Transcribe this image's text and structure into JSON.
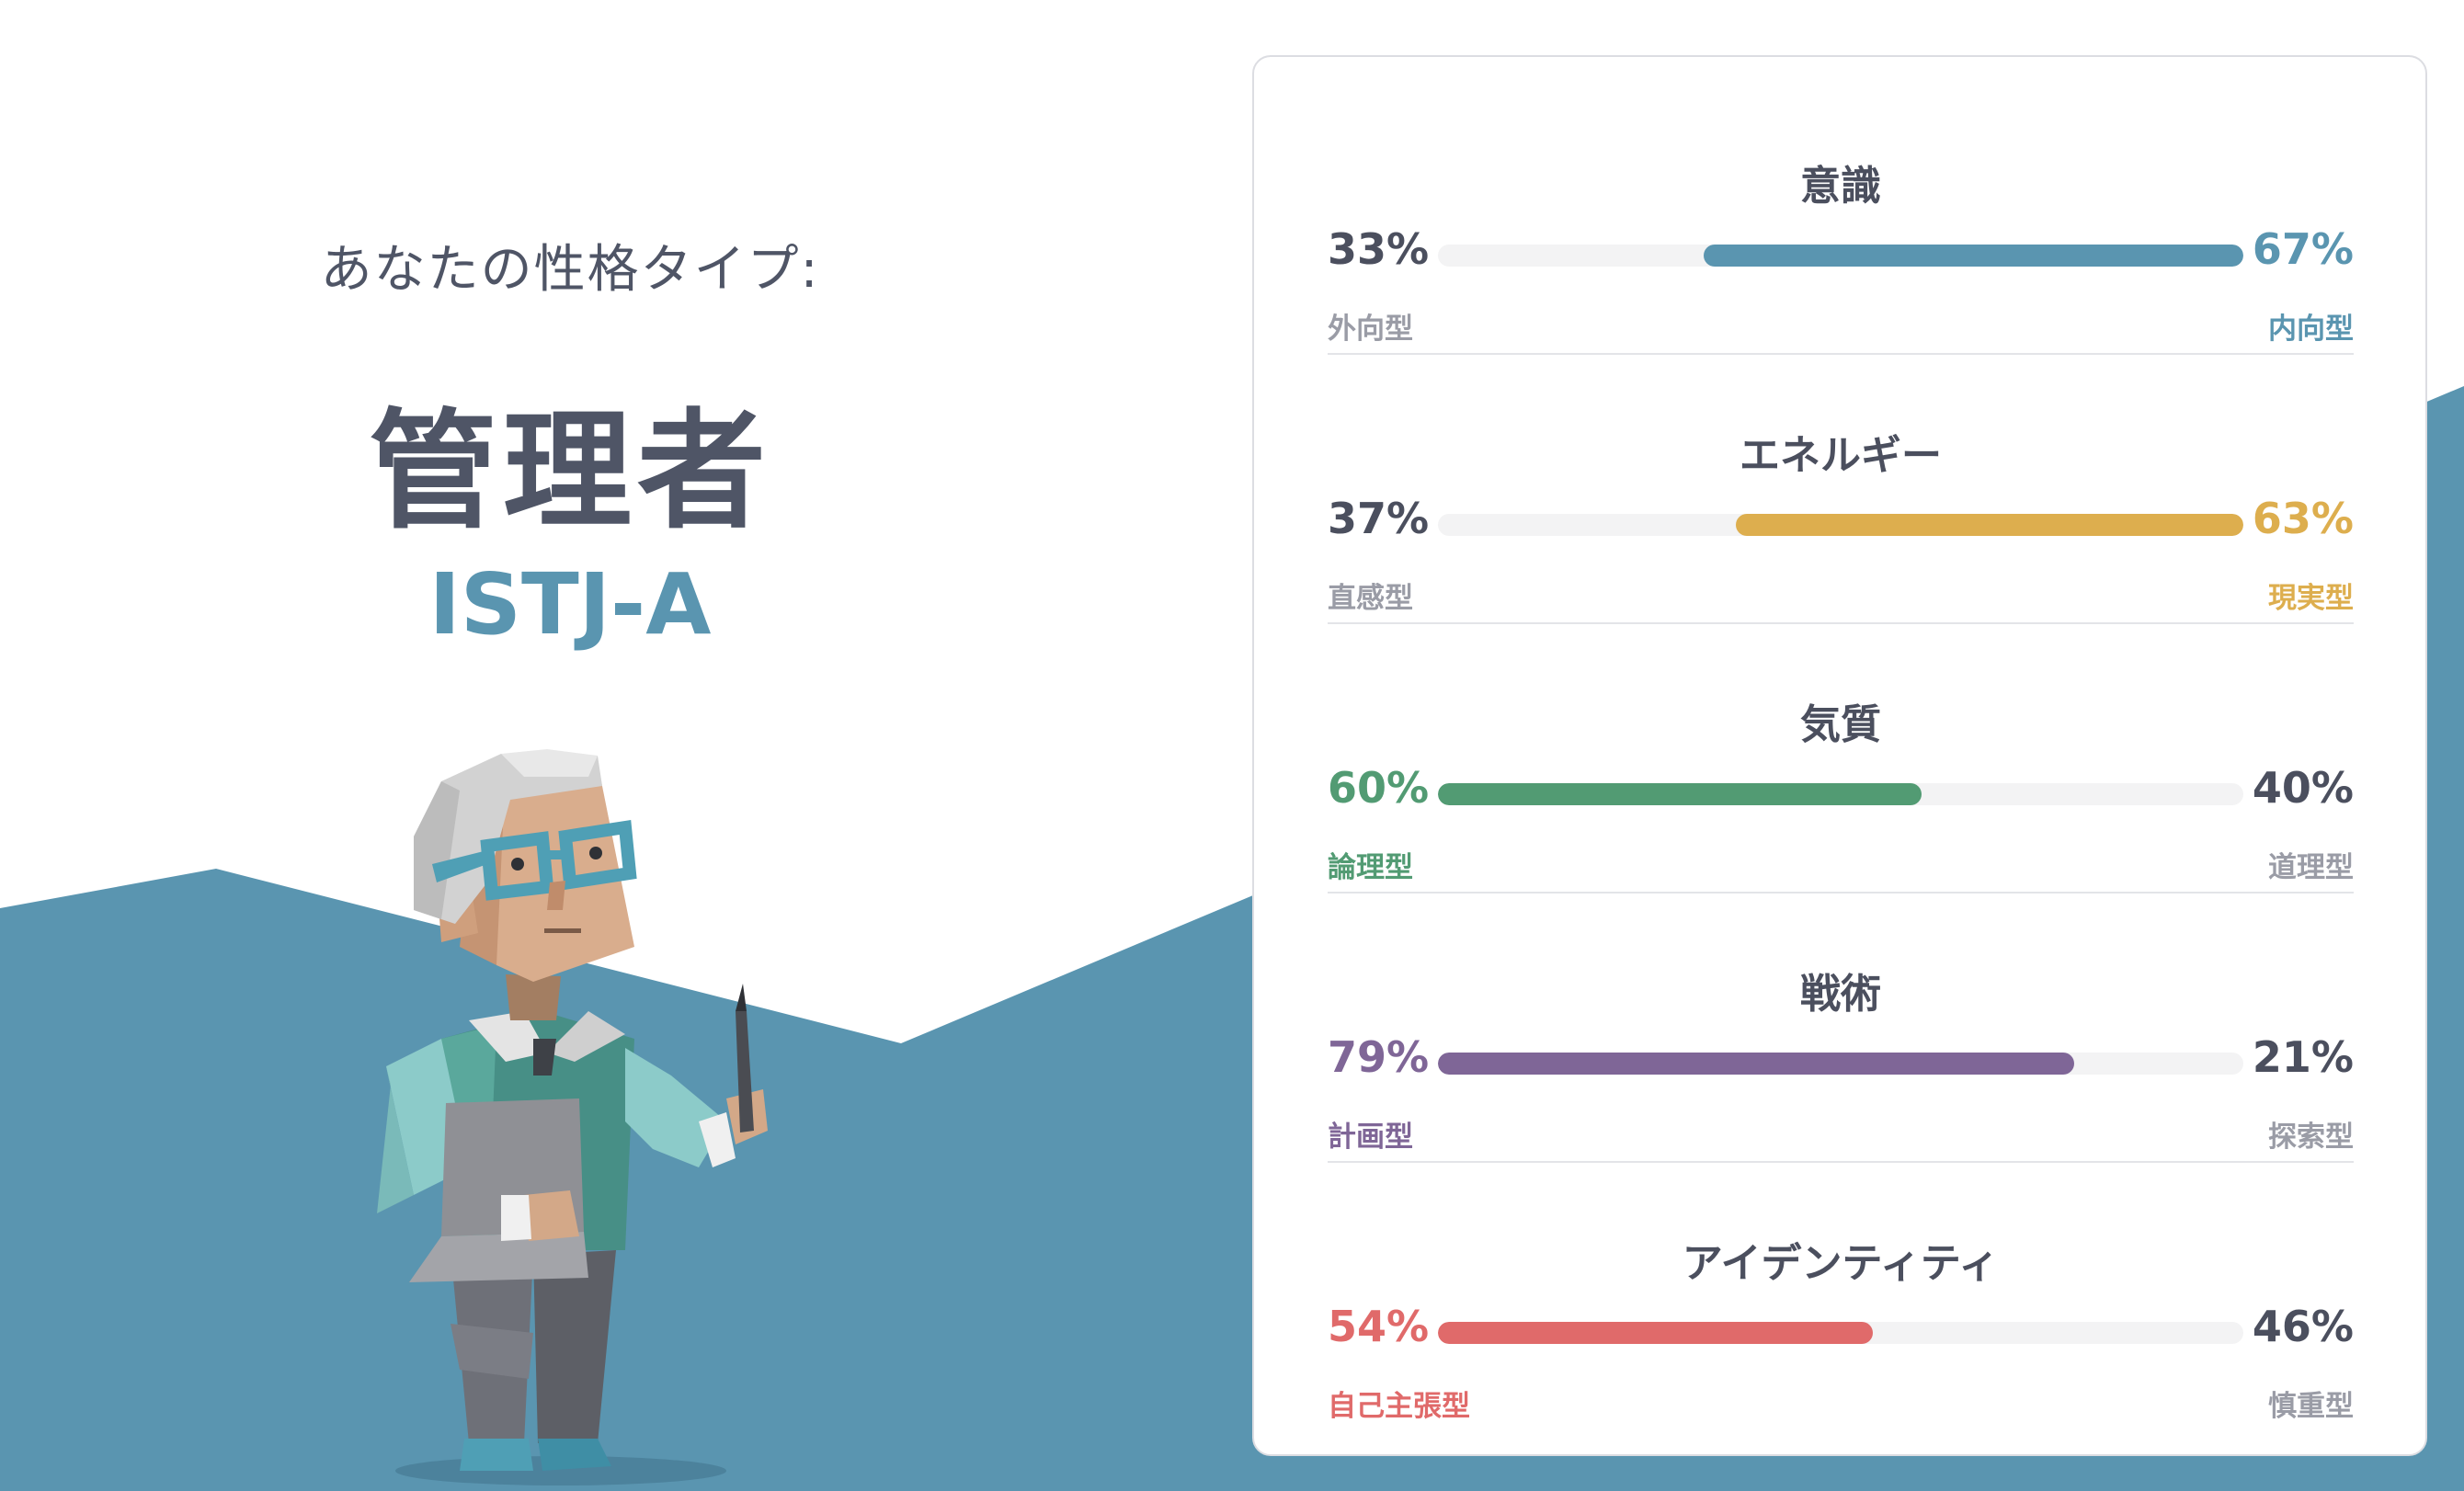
{
  "header": {
    "subtitle": "あなたの性格タイプ:",
    "type_name": "管理者",
    "type_code": "ISTJ-A"
  },
  "colors": {
    "background_shape": "#5a95b0",
    "text_dark": "#4b4f5e",
    "label_gray": "#9a9ca6",
    "bar_track": "#f3f3f4"
  },
  "traits": [
    {
      "title": "意識",
      "left_pct": "33%",
      "right_pct": "67%",
      "left_label": "外向型",
      "right_label": "内向型",
      "dominant": "right",
      "value": 0.67,
      "color": "#5a95b0"
    },
    {
      "title": "エネルギー",
      "left_pct": "37%",
      "right_pct": "63%",
      "left_label": "直感型",
      "right_label": "現実型",
      "dominant": "right",
      "value": 0.63,
      "color": "#ddae4e"
    },
    {
      "title": "気質",
      "left_pct": "60%",
      "right_pct": "40%",
      "left_label": "論理型",
      "right_label": "道理型",
      "dominant": "left",
      "value": 0.6,
      "color": "#529b73"
    },
    {
      "title": "戦術",
      "left_pct": "79%",
      "right_pct": "21%",
      "left_label": "計画型",
      "right_label": "探索型",
      "dominant": "left",
      "value": 0.79,
      "color": "#7f6697"
    },
    {
      "title": "アイデンティティ",
      "left_pct": "54%",
      "right_pct": "46%",
      "left_label": "自己主張型",
      "right_label": "慎重型",
      "dominant": "left",
      "value": 0.54,
      "color": "#e06a6a"
    }
  ],
  "illustration": {
    "icon": "administrator-character-icon"
  }
}
